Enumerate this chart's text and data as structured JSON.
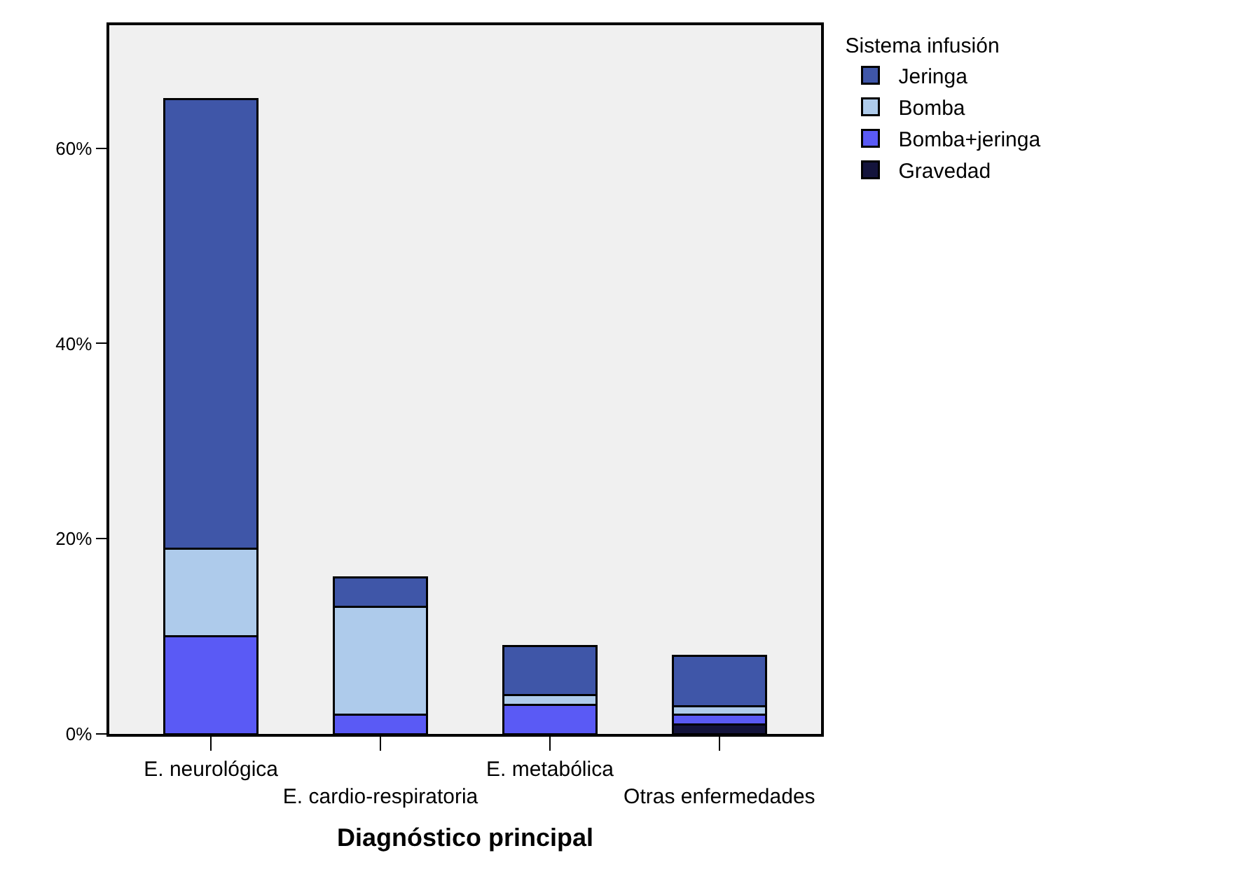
{
  "chart_data": {
    "type": "bar",
    "stacked": true,
    "xlabel": "Diagnóstico principal",
    "legend_title": "Sistema infusión",
    "legend": "top right",
    "categories": [
      "E. neurológica",
      "E. cardio-respiratoria",
      "E. metabólica",
      "Otras enfermedades"
    ],
    "series": [
      {
        "name": "Gravedad",
        "color": "#14143c",
        "values": [
          0,
          0,
          0,
          1
        ]
      },
      {
        "name": "Bomba+jeringa",
        "color": "#5a5af5",
        "values": [
          10,
          2,
          3,
          1
        ]
      },
      {
        "name": "Bomba",
        "color": "#aecbeb",
        "values": [
          9,
          11,
          1,
          0.8
        ]
      },
      {
        "name": "Jeringa",
        "color": "#3f56a8",
        "values": [
          46,
          3,
          5,
          5.2
        ]
      }
    ],
    "ylim": [
      0,
      72.6
    ],
    "yticks": [
      {
        "value": 0,
        "label": "0%"
      },
      {
        "value": 20,
        "label": "20%"
      },
      {
        "value": 40,
        "label": "40%"
      },
      {
        "value": 60,
        "label": "60%"
      }
    ],
    "grid": false
  }
}
